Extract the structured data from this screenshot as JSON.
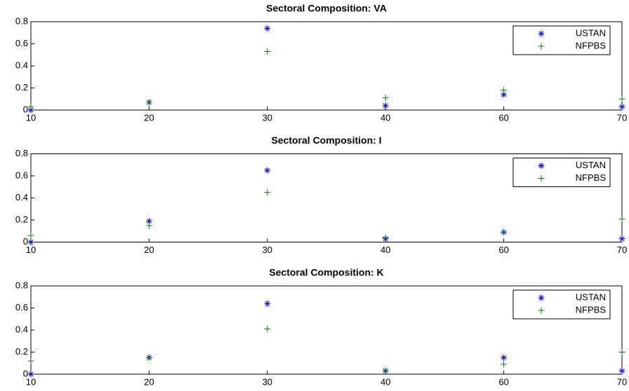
{
  "chart_data": [
    {
      "type": "scatter",
      "title": "Sectoral Composition: VA",
      "categories": [
        "10",
        "20",
        "30",
        "40",
        "60",
        "70"
      ],
      "series": [
        {
          "name": "USTAN",
          "color": "#0000ff",
          "marker": "star",
          "values": [
            0,
            0.07,
            0.74,
            0.04,
            0.14,
            0.03
          ]
        },
        {
          "name": "NFPBS",
          "color": "#008000",
          "marker": "plus",
          "values": [
            0.03,
            0.07,
            0.53,
            0.11,
            0.18,
            0.1
          ]
        }
      ],
      "ylim": [
        0,
        0.8
      ],
      "yticks": [
        0,
        0.2,
        0.4,
        0.6,
        0.8
      ],
      "legend": "northeast"
    },
    {
      "type": "scatter",
      "title": "Sectoral Composition: I",
      "categories": [
        "10",
        "20",
        "30",
        "40",
        "60",
        "70"
      ],
      "series": [
        {
          "name": "USTAN",
          "color": "#0000ff",
          "marker": "star",
          "values": [
            0,
            0.19,
            0.65,
            0.03,
            0.09,
            0.03
          ]
        },
        {
          "name": "NFPBS",
          "color": "#008000",
          "marker": "plus",
          "values": [
            0.06,
            0.15,
            0.45,
            0.04,
            0.09,
            0.21
          ]
        }
      ],
      "ylim": [
        0,
        0.8
      ],
      "yticks": [
        0,
        0.2,
        0.4,
        0.6,
        0.8
      ],
      "legend": "northeast"
    },
    {
      "type": "scatter",
      "title": "Sectoral Composition: K",
      "categories": [
        "10",
        "20",
        "30",
        "40",
        "60",
        "70"
      ],
      "series": [
        {
          "name": "USTAN",
          "color": "#0000ff",
          "marker": "star",
          "values": [
            0,
            0.15,
            0.64,
            0.03,
            0.15,
            0.03
          ]
        },
        {
          "name": "NFPBS",
          "color": "#008000",
          "marker": "plus",
          "values": [
            0.12,
            0.15,
            0.41,
            0.03,
            0.09,
            0.2
          ]
        }
      ],
      "ylim": [
        0,
        0.8
      ],
      "yticks": [
        0,
        0.2,
        0.4,
        0.6,
        0.8
      ],
      "legend": "northeast"
    }
  ]
}
